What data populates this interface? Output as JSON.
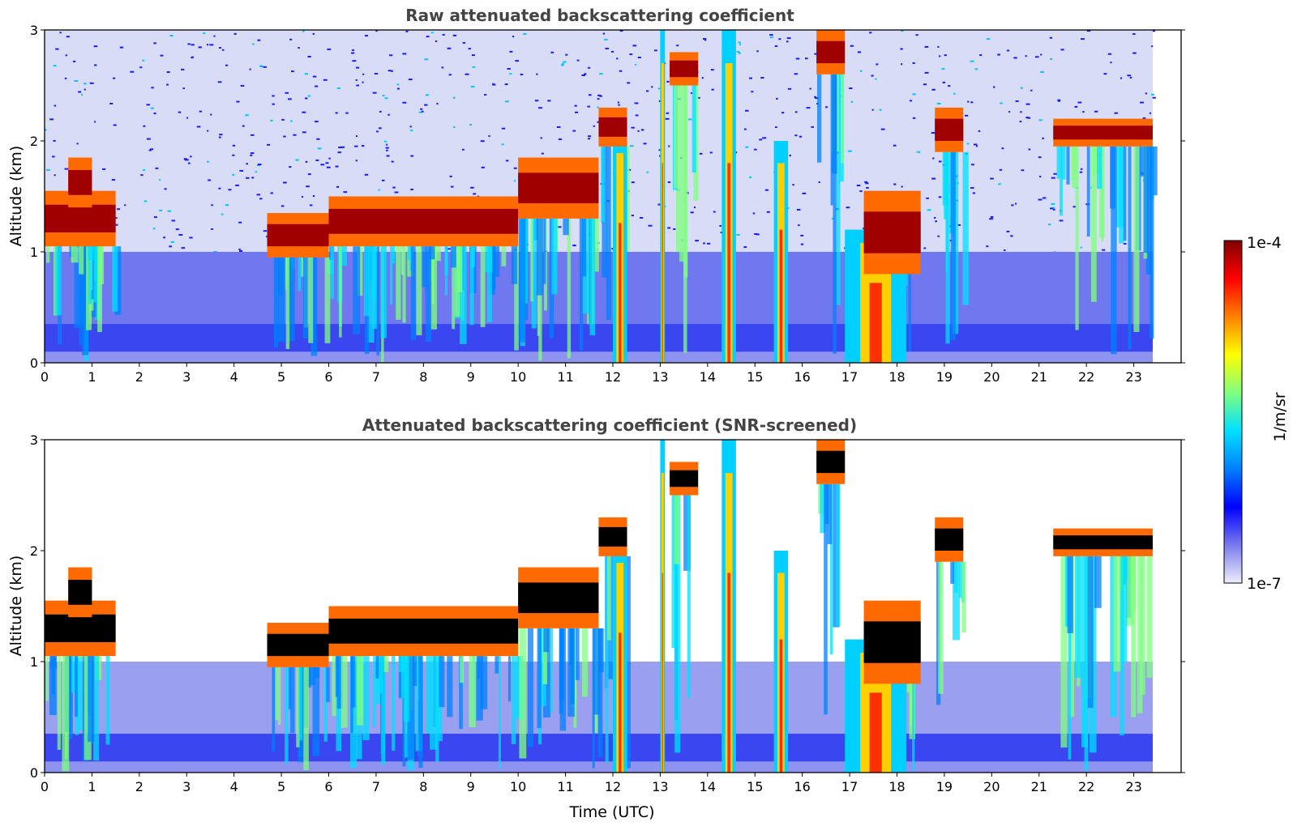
{
  "chart_data": [
    {
      "type": "heatmap",
      "title": "Raw attenuated backscattering coefficient",
      "xlabel": "",
      "ylabel": "Altitude (km)",
      "xlim": [
        0,
        24
      ],
      "ylim": [
        0,
        3
      ],
      "x_ticks": [
        "0",
        "1",
        "2",
        "3",
        "4",
        "5",
        "6",
        "7",
        "8",
        "9",
        "10",
        "11",
        "12",
        "13",
        "14",
        "15",
        "16",
        "17",
        "18",
        "19",
        "20",
        "21",
        "22",
        "23"
      ],
      "y_ticks": [
        "0",
        "1",
        "2",
        "3"
      ],
      "data_extent_hours": [
        0,
        23.4
      ],
      "cloud_layers": [
        {
          "t": [
            0.0,
            1.5
          ],
          "alt_km": [
            1.05,
            1.55
          ]
        },
        {
          "t": [
            0.5,
            1.0
          ],
          "alt_km": [
            1.4,
            1.85
          ]
        },
        {
          "t": [
            4.7,
            6.0
          ],
          "alt_km": [
            0.95,
            1.35
          ]
        },
        {
          "t": [
            6.0,
            10.0
          ],
          "alt_km": [
            1.05,
            1.5
          ]
        },
        {
          "t": [
            10.0,
            11.7
          ],
          "alt_km": [
            1.3,
            1.85
          ]
        },
        {
          "t": [
            11.7,
            12.3
          ],
          "alt_km": [
            1.95,
            2.3
          ]
        },
        {
          "t": [
            13.2,
            13.8
          ],
          "alt_km": [
            2.5,
            2.8
          ]
        },
        {
          "t": [
            16.3,
            16.9
          ],
          "alt_km": [
            2.6,
            3.0
          ]
        },
        {
          "t": [
            17.3,
            18.5
          ],
          "alt_km": [
            0.8,
            1.55
          ]
        },
        {
          "t": [
            18.8,
            19.4
          ],
          "alt_km": [
            1.9,
            2.3
          ]
        },
        {
          "t": [
            21.3,
            23.4
          ],
          "alt_km": [
            1.95,
            2.2
          ]
        }
      ],
      "precip_columns": [
        {
          "t": [
            12.0,
            12.3
          ],
          "alt_km": [
            0,
            2.1
          ]
        },
        {
          "t": [
            13.0,
            13.1
          ],
          "alt_km": [
            0,
            3.0
          ]
        },
        {
          "t": [
            14.3,
            14.6
          ],
          "alt_km": [
            0,
            3.0
          ]
        },
        {
          "t": [
            15.4,
            15.7
          ],
          "alt_km": [
            0,
            2.0
          ]
        },
        {
          "t": [
            16.9,
            18.2
          ],
          "alt_km": [
            0,
            1.2
          ]
        }
      ]
    },
    {
      "type": "heatmap",
      "title": "Attenuated backscattering coefficient (SNR-screened)",
      "xlabel": "Time (UTC)",
      "ylabel": "Altitude (km)",
      "xlim": [
        0,
        24
      ],
      "ylim": [
        0,
        3
      ],
      "x_ticks": [
        "0",
        "1",
        "2",
        "3",
        "4",
        "5",
        "6",
        "7",
        "8",
        "9",
        "10",
        "11",
        "12",
        "13",
        "14",
        "15",
        "16",
        "17",
        "18",
        "19",
        "20",
        "21",
        "22",
        "23"
      ],
      "y_ticks": [
        "0",
        "1",
        "2",
        "3"
      ],
      "data_extent_hours": [
        0,
        23.4
      ]
    }
  ],
  "colorbar": {
    "label": "1/m/sr",
    "max_label": "1e-4",
    "min_label": "1e-7",
    "scale": "log",
    "range": [
      1e-07,
      0.0001
    ],
    "colormap": "jet",
    "colors": [
      "#eeeefa",
      "#7a7aee",
      "#0000ff",
      "#0080ff",
      "#00e0ff",
      "#80ff80",
      "#ffff00",
      "#ff8000",
      "#ff0000",
      "#800000"
    ]
  }
}
